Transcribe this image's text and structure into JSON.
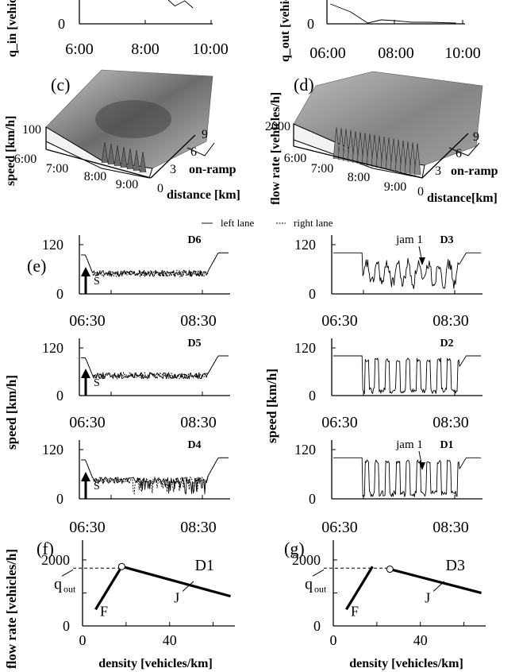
{
  "chart_data": {
    "type": "line",
    "legend": {
      "left": "left lane",
      "right": "right lane"
    },
    "top_panels": {
      "a": {
        "ylabel": "q_in [vehic",
        "ysub": "in",
        "yticks": [
          "0"
        ],
        "xticks": [
          "6:00",
          "8:00",
          "10:00"
        ],
        "series": [
          {
            "name": "q_in",
            "points": [
              [
                8.7,
                600
              ],
              [
                8.9,
                450
              ],
              [
                9.2,
                580
              ],
              [
                9.45,
                400
              ]
            ]
          }
        ]
      },
      "b": {
        "ylabel": "q_out [vehic",
        "ysub": "out",
        "yticks": [
          "0"
        ],
        "xticks": [
          "06:00",
          "08:00",
          "10:00"
        ],
        "series": [
          {
            "name": "q_out",
            "points": [
              [
                6.1,
                500
              ],
              [
                6.7,
                300
              ],
              [
                7.2,
                20
              ],
              [
                7.6,
                100
              ],
              [
                8.0,
                80
              ],
              [
                8.5,
                40
              ],
              [
                9.0,
                40
              ],
              [
                9.8,
                20
              ]
            ]
          }
        ]
      }
    },
    "surfaces": {
      "c": {
        "label": "(c)",
        "zlabel": "speed [km/h]",
        "zticks": [
          "100"
        ],
        "tticks": [
          "6:00",
          "7:00",
          "8:00",
          "9:00"
        ],
        "dticks": [
          "0",
          "3",
          "6",
          "9"
        ],
        "dlabel": "distance [km]",
        "ramp": "on-ramp"
      },
      "d": {
        "label": "(d)",
        "zlabel": "flow rate [vehicles/h]",
        "zticks": [
          "2000"
        ],
        "tticks": [
          "6:00",
          "7:00",
          "8:00",
          "9:00"
        ],
        "dticks": [
          "0",
          "3",
          "6",
          "9"
        ],
        "dlabel": "distance[km]",
        "ramp": "on-ramp"
      }
    },
    "speed_panels": {
      "label": "(e)",
      "ylabel": "speed [km/h]",
      "yticks": [
        "0",
        "120"
      ],
      "xticks": [
        "06:30",
        "08:30"
      ],
      "detectors": [
        {
          "name": "D6",
          "pattern": "sync",
          "arrow": "S"
        },
        {
          "name": "D3",
          "pattern": "jams_mixed",
          "annotation": "jam 1"
        },
        {
          "name": "D5",
          "pattern": "sync",
          "arrow": "S"
        },
        {
          "name": "D2",
          "pattern": "jams_wide"
        },
        {
          "name": "D4",
          "pattern": "sync_jams",
          "arrow": "S"
        },
        {
          "name": "D1",
          "pattern": "jams_wide",
          "annotation": "jam 1"
        }
      ]
    },
    "fundamental": [
      {
        "label": "(f)",
        "detector": "D1",
        "xlabel": "density [vehicles/km]",
        "ylabel": "flow rate [vehicles/h]",
        "xlim": [
          0,
          70
        ],
        "ylim": [
          0,
          2600
        ],
        "xticks": [
          "0",
          "40"
        ],
        "yticks": [
          "0",
          "2000"
        ],
        "F": [
          [
            6,
            500
          ],
          [
            18,
            1800
          ]
        ],
        "J": [
          [
            18,
            1800
          ],
          [
            68,
            900
          ]
        ],
        "max_point": [
          18,
          1800
        ],
        "qout": 1750,
        "labels": {
          "F": "F",
          "J": "J",
          "qout": "q",
          "qsub": "out"
        }
      },
      {
        "label": "(g)",
        "detector": "D3",
        "xlabel": "density [vehicles/km]",
        "ylabel": "flow rate [vehicles/h]",
        "xlim": [
          0,
          70
        ],
        "ylim": [
          0,
          2600
        ],
        "xticks": [
          "0",
          "40"
        ],
        "yticks": [
          "0",
          "2000"
        ],
        "F": [
          [
            6,
            500
          ],
          [
            18,
            1800
          ]
        ],
        "J": [
          [
            26,
            1720
          ],
          [
            68,
            1000
          ]
        ],
        "max_point": [
          26,
          1720
        ],
        "qout": 1750,
        "labels": {
          "F": "F",
          "J": "J",
          "qout": "q",
          "qsub": "out"
        }
      }
    ]
  }
}
